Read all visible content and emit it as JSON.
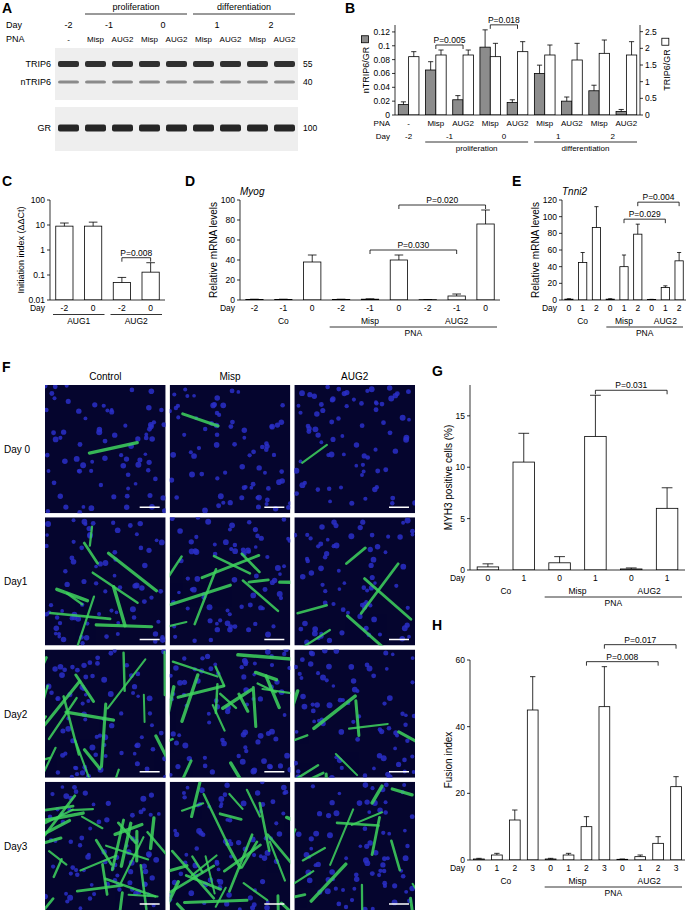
{
  "blot": {
    "panel": "A",
    "phases": [
      null,
      "proliferation",
      "proliferation",
      "proliferation",
      "proliferation",
      "differentiation",
      "differentiation",
      "differentiation",
      "differentiation"
    ],
    "day_title": "Day",
    "days": [
      "-2",
      "-1",
      "-1",
      "0",
      "0",
      "1",
      "1",
      "2",
      "2"
    ],
    "pna_title": "PNA",
    "lanes": [
      "-",
      "Misp",
      "AUG2",
      "Misp",
      "AUG2",
      "Misp",
      "AUG2",
      "Misp",
      "AUG2"
    ],
    "bands": [
      {
        "label": "TRIP6",
        "marker": 55
      },
      {
        "label": "nTRIP6",
        "marker": 40
      },
      {
        "label": "GR",
        "marker": 100
      }
    ]
  },
  "micrographs": {
    "panel": "F",
    "columns": [
      "Control",
      "Misp",
      "AUG2"
    ],
    "rows": [
      "Day 0",
      "Day1",
      "Day2",
      "Day3"
    ]
  },
  "chart_data": [
    {
      "panel": "B",
      "type": "bar",
      "categories": [
        "-",
        "Misp",
        "AUG2",
        "Misp",
        "AUG2",
        "Misp",
        "AUG2",
        "Misp",
        "AUG2"
      ],
      "category_title": "PNA",
      "x_rows": [
        {
          "title": "Day",
          "labels": [
            "-2",
            "-1",
            "-1",
            "0",
            "0",
            "1",
            "1",
            "2",
            "2"
          ]
        },
        {
          "labels": [
            null,
            "proliferation",
            "proliferation",
            "proliferation",
            "proliferation",
            "differentiation",
            "differentiation",
            "differentiation",
            "differentiation"
          ]
        }
      ],
      "series": [
        {
          "name": "nTRIP6/GR",
          "color": "#8c8c8c",
          "values": [
            0.015,
            0.065,
            0.022,
            0.098,
            0.018,
            0.06,
            0.02,
            0.035,
            0.005
          ],
          "errors": [
            0.004,
            0.012,
            0.006,
            0.025,
            0.004,
            0.012,
            0.006,
            0.008,
            0.003
          ]
        },
        {
          "name": "TRIP6/GR",
          "color": "#ffffff",
          "axis": "y2",
          "values": [
            1.75,
            1.8,
            1.8,
            1.75,
            1.9,
            1.8,
            1.65,
            1.85,
            1.8
          ],
          "errors": [
            0.15,
            0.15,
            0.15,
            0.4,
            0.3,
            0.3,
            0.5,
            0.4,
            0.4
          ]
        }
      ],
      "ylim": [
        0,
        0.13
      ],
      "yticks": [
        0,
        0.02,
        0.04,
        0.06,
        0.08,
        0.1,
        0.12
      ],
      "y2lim": [
        0,
        2.7
      ],
      "y2ticks": [
        0,
        0.5,
        1,
        1.5,
        2,
        2.5
      ],
      "annotations": [
        {
          "text": "P=0.005",
          "from": 1,
          "to": 2
        },
        {
          "text": "P=0.018",
          "from": 3,
          "to": 4
        }
      ]
    },
    {
      "panel": "C",
      "type": "bar",
      "log": "y",
      "y_label": "Initiation index (ΔΔCt)",
      "categories": [
        "-2",
        "0",
        "-2",
        "0"
      ],
      "category_title": "Day",
      "x_rows": [
        {
          "labels": [
            "AUG1",
            "AUG1",
            "AUG2",
            "AUG2"
          ]
        }
      ],
      "series": [
        {
          "color": "#ffffff",
          "values": [
            9,
            9,
            0.05,
            0.13
          ],
          "errors": [
            3,
            4,
            0.03,
            0.18
          ]
        }
      ],
      "ylim": [
        0.01,
        100
      ],
      "yticks": [
        0.01,
        0.1,
        1,
        10,
        100
      ],
      "annotations": [
        {
          "text": "P=0.008",
          "from": 2,
          "to": 3
        }
      ]
    },
    {
      "panel": "D",
      "type": "bar",
      "title": "Myog",
      "y_label": "Relative mRNA levels",
      "categories": [
        "-2",
        "-1",
        "0",
        "-2",
        "-1",
        "0",
        "-2",
        "-1",
        "0"
      ],
      "category_title": "Day",
      "x_rows": [
        {
          "labels": [
            "Co",
            "Co",
            "Co",
            "Misp",
            "Misp",
            "Misp",
            "AUG2",
            "AUG2",
            "AUG2"
          ]
        },
        {
          "labels": [
            null,
            null,
            null,
            "PNA",
            "PNA",
            "PNA",
            "PNA",
            "PNA",
            "PNA"
          ]
        }
      ],
      "series": [
        {
          "color": "#ffffff",
          "values": [
            0.5,
            0.5,
            38,
            0.5,
            0.8,
            40,
            0.3,
            4,
            76
          ],
          "errors": [
            0.3,
            0.3,
            7,
            0.3,
            0.4,
            5,
            0.2,
            2,
            14
          ]
        }
      ],
      "ylim": [
        0,
        100
      ],
      "yticks": [
        0,
        20,
        40,
        60,
        80,
        100
      ],
      "annotations": [
        {
          "text": "P=0.030",
          "from": 4,
          "to": 7
        },
        {
          "text": "P=0.020",
          "from": 5,
          "to": 8
        }
      ]
    },
    {
      "panel": "E",
      "type": "bar",
      "title": "Tnni2",
      "y_label": "Relative mRNA levels",
      "categories": [
        "0",
        "1",
        "2",
        "0",
        "1",
        "2",
        "0",
        "1",
        "2"
      ],
      "category_title": "Day",
      "x_rows": [
        {
          "labels": [
            "Co",
            "Co",
            "Co",
            "Misp",
            "Misp",
            "Misp",
            "AUG2",
            "AUG2",
            "AUG2"
          ]
        },
        {
          "labels": [
            null,
            null,
            null,
            "PNA",
            "PNA",
            "PNA",
            "PNA",
            "PNA",
            "PNA"
          ]
        }
      ],
      "series": [
        {
          "color": "#ffffff",
          "values": [
            1,
            45,
            87,
            1,
            40,
            79,
            0.5,
            15,
            47
          ],
          "errors": [
            0.5,
            12,
            25,
            0.5,
            14,
            12,
            0.3,
            2,
            10
          ]
        }
      ],
      "ylim": [
        0,
        120
      ],
      "yticks": [
        0,
        20,
        40,
        60,
        80,
        100,
        120
      ],
      "annotations": [
        {
          "text": "P=0.029",
          "from": 4,
          "to": 7
        },
        {
          "text": "P=0.004",
          "from": 5,
          "to": 8
        }
      ]
    },
    {
      "panel": "G",
      "type": "bar",
      "y_label": "MYH3 positive cells (%)",
      "categories": [
        "0",
        "1",
        "0",
        "1",
        "0",
        "1"
      ],
      "category_title": "Day",
      "x_rows": [
        {
          "labels": [
            "Co",
            "Co",
            "Misp",
            "Misp",
            "AUG2",
            "AUG2"
          ]
        },
        {
          "labels": [
            null,
            null,
            "PNA",
            "PNA",
            "PNA",
            "PNA"
          ]
        }
      ],
      "series": [
        {
          "color": "#ffffff",
          "values": [
            0.3,
            10.5,
            0.7,
            13,
            0.1,
            6
          ],
          "errors": [
            0.3,
            2.8,
            0.6,
            4,
            0.1,
            2
          ]
        }
      ],
      "ylim": [
        0,
        18
      ],
      "yticks": [
        0,
        5,
        10,
        15
      ],
      "annotations": [
        {
          "text": "P=0.031",
          "from": 3,
          "to": 5
        }
      ]
    },
    {
      "panel": "H",
      "type": "bar",
      "y_label": "Fusion index",
      "categories": [
        "0",
        "1",
        "2",
        "3",
        "0",
        "1",
        "2",
        "3",
        "0",
        "1",
        "2",
        "3"
      ],
      "category_title": "Day",
      "x_rows": [
        {
          "labels": [
            "Co",
            "Co",
            "Co",
            "Co",
            "Misp",
            "Misp",
            "Misp",
            "Misp",
            "AUG2",
            "AUG2",
            "AUG2",
            "AUG2"
          ]
        },
        {
          "labels": [
            null,
            null,
            null,
            null,
            "PNA",
            "PNA",
            "PNA",
            "PNA",
            "PNA",
            "PNA",
            "PNA",
            "PNA"
          ]
        }
      ],
      "series": [
        {
          "color": "#ffffff",
          "values": [
            0.3,
            1.5,
            12,
            45,
            0.3,
            1.5,
            10,
            46,
            0.2,
            1,
            5,
            22
          ],
          "errors": [
            0.2,
            0.5,
            3,
            10,
            0.2,
            0.5,
            3,
            12,
            0.1,
            0.5,
            2,
            3
          ]
        }
      ],
      "ylim": [
        0,
        60
      ],
      "yticks": [
        0,
        20,
        40,
        60
      ],
      "annotations": [
        {
          "text": "P=0.008",
          "from": 6,
          "to": 10
        },
        {
          "text": "P=0.017",
          "from": 7,
          "to": 11
        }
      ]
    }
  ]
}
